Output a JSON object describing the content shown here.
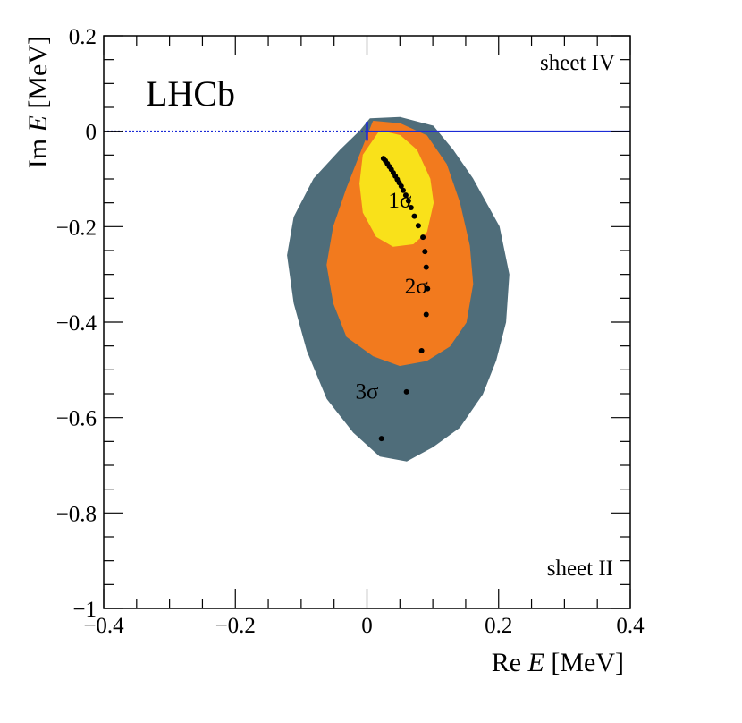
{
  "chart_data": {
    "type": "scatter",
    "title": "",
    "xlabel": "Re E [MeV]",
    "ylabel": "Im E [MeV]",
    "xlabel_parts": {
      "prefix": "Re ",
      "var": "E",
      "unit": " [MeV]"
    },
    "ylabel_parts": {
      "prefix": "Im ",
      "var": "E",
      "unit": " [MeV]"
    },
    "xlim": [
      -0.4,
      0.4
    ],
    "ylim": [
      -1.0,
      0.2
    ],
    "x_ticks": [
      {
        "value": -0.4,
        "label": "−0.4"
      },
      {
        "value": -0.2,
        "label": "−0.2"
      },
      {
        "value": 0,
        "label": "0"
      },
      {
        "value": 0.2,
        "label": "0.2"
      },
      {
        "value": 0.4,
        "label": "0.4"
      }
    ],
    "y_ticks": [
      {
        "value": 0.2,
        "label": "0.2"
      },
      {
        "value": 0,
        "label": "0"
      },
      {
        "value": -0.2,
        "label": "−0.2"
      },
      {
        "value": -0.4,
        "label": "−0.4"
      },
      {
        "value": -0.6,
        "label": "−0.6"
      },
      {
        "value": -0.8,
        "label": "−0.8"
      },
      {
        "value": -1.0,
        "label": "−1"
      }
    ],
    "experiment_label": "LHCb",
    "sheet_labels": [
      {
        "text": "sheet IV",
        "position": "top-right"
      },
      {
        "text": "sheet II",
        "position": "bottom-right"
      }
    ],
    "threshold_line": {
      "y": 0,
      "x_start": 0,
      "x_end": 0.4,
      "color": "#1c2bd6"
    },
    "threshold_dotted": {
      "y": 0,
      "x_start": -0.4,
      "x_end": 0,
      "color": "#1c2bd6"
    },
    "regions": [
      {
        "name": "3σ",
        "color": "#4f6d7a",
        "outline": [
          [
            0.005,
            0.025
          ],
          [
            0.05,
            0.028
          ],
          [
            0.1,
            0.01
          ],
          [
            0.13,
            -0.04
          ],
          [
            0.16,
            -0.1
          ],
          [
            0.2,
            -0.2
          ],
          [
            0.215,
            -0.3
          ],
          [
            0.21,
            -0.4
          ],
          [
            0.195,
            -0.48
          ],
          [
            0.175,
            -0.55
          ],
          [
            0.14,
            -0.62
          ],
          [
            0.1,
            -0.66
          ],
          [
            0.06,
            -0.69
          ],
          [
            0.02,
            -0.68
          ],
          [
            -0.02,
            -0.63
          ],
          [
            -0.06,
            -0.56
          ],
          [
            -0.09,
            -0.46
          ],
          [
            -0.11,
            -0.36
          ],
          [
            -0.12,
            -0.26
          ],
          [
            -0.11,
            -0.18
          ],
          [
            -0.08,
            -0.1
          ],
          [
            -0.04,
            -0.04
          ],
          [
            -0.01,
            0.0
          ]
        ]
      },
      {
        "name": "2σ",
        "color": "#f27a1e",
        "outline": [
          [
            0.01,
            0.02
          ],
          [
            0.05,
            0.015
          ],
          [
            0.09,
            -0.01
          ],
          [
            0.12,
            -0.07
          ],
          [
            0.14,
            -0.15
          ],
          [
            0.155,
            -0.24
          ],
          [
            0.16,
            -0.32
          ],
          [
            0.15,
            -0.4
          ],
          [
            0.125,
            -0.45
          ],
          [
            0.09,
            -0.48
          ],
          [
            0.05,
            -0.49
          ],
          [
            0.01,
            -0.47
          ],
          [
            -0.03,
            -0.43
          ],
          [
            -0.05,
            -0.36
          ],
          [
            -0.06,
            -0.28
          ],
          [
            -0.05,
            -0.2
          ],
          [
            -0.03,
            -0.12
          ],
          [
            -0.01,
            -0.05
          ]
        ]
      },
      {
        "name": "1σ",
        "color": "#f9e11a",
        "outline": [
          [
            0.02,
            0.0
          ],
          [
            0.05,
            -0.01
          ],
          [
            0.075,
            -0.04
          ],
          [
            0.095,
            -0.1
          ],
          [
            0.1,
            -0.15
          ],
          [
            0.09,
            -0.21
          ],
          [
            0.07,
            -0.235
          ],
          [
            0.04,
            -0.24
          ],
          [
            0.015,
            -0.22
          ],
          [
            -0.005,
            -0.17
          ],
          [
            -0.01,
            -0.11
          ],
          [
            -0.005,
            -0.05
          ]
        ]
      }
    ],
    "region_labels": [
      {
        "text": "1σ",
        "x": 0.05,
        "y": -0.16
      },
      {
        "text": "2σ",
        "x": 0.075,
        "y": -0.34
      },
      {
        "text": "3σ",
        "x": 0.0,
        "y": -0.56
      }
    ],
    "points": [
      {
        "x": 0.025,
        "y": -0.057
      },
      {
        "x": 0.028,
        "y": -0.062
      },
      {
        "x": 0.031,
        "y": -0.068
      },
      {
        "x": 0.034,
        "y": -0.074
      },
      {
        "x": 0.037,
        "y": -0.08
      },
      {
        "x": 0.04,
        "y": -0.087
      },
      {
        "x": 0.043,
        "y": -0.094
      },
      {
        "x": 0.046,
        "y": -0.101
      },
      {
        "x": 0.049,
        "y": -0.108
      },
      {
        "x": 0.052,
        "y": -0.115
      },
      {
        "x": 0.055,
        "y": -0.124
      },
      {
        "x": 0.059,
        "y": -0.134
      },
      {
        "x": 0.063,
        "y": -0.146
      },
      {
        "x": 0.067,
        "y": -0.16
      },
      {
        "x": 0.072,
        "y": -0.178
      },
      {
        "x": 0.078,
        "y": -0.198
      },
      {
        "x": 0.085,
        "y": -0.222
      },
      {
        "x": 0.088,
        "y": -0.252
      },
      {
        "x": 0.09,
        "y": -0.285
      },
      {
        "x": 0.092,
        "y": -0.33
      },
      {
        "x": 0.09,
        "y": -0.384
      },
      {
        "x": 0.083,
        "y": -0.46
      },
      {
        "x": 0.06,
        "y": -0.546
      },
      {
        "x": 0.022,
        "y": -0.644
      }
    ]
  }
}
